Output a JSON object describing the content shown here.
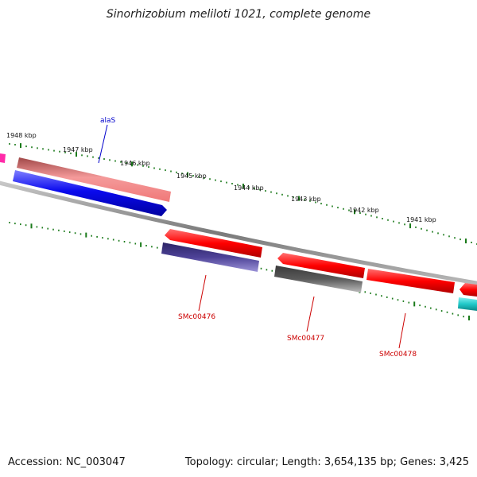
{
  "title": "Sinorhizobium meliloti 1021, complete genome",
  "footer": {
    "accession": "Accession: NC_003047",
    "summary": "Topology: circular; Length: 3,654,135 bp; Genes: 3,425"
  },
  "tick_labels": [
    "1948 kbp",
    "1947 kbp",
    "1946 kbp",
    "1945 kbp",
    "1944 kbp",
    "1943 kbp",
    "1942 kbp",
    "1941 kbp"
  ],
  "gene_labels": [
    {
      "text": "alaS",
      "color": "#0000cc"
    },
    {
      "text": "SMc00476",
      "color": "#cc0000"
    },
    {
      "text": "SMc00477",
      "color": "#cc0000"
    },
    {
      "text": "SMc00478",
      "color": "#cc0000"
    }
  ],
  "colors": {
    "tick": "#1a7a1a",
    "backbone": "#888888",
    "red_gene": "#ff1010",
    "pink_gene": "#f08080",
    "blue_gene": "#1010ee",
    "purple_gene": "#4a3f8f",
    "gray_gene": "#555555",
    "cyan_gene": "#22cccc",
    "magenta_gene": "#ff2aa8"
  }
}
